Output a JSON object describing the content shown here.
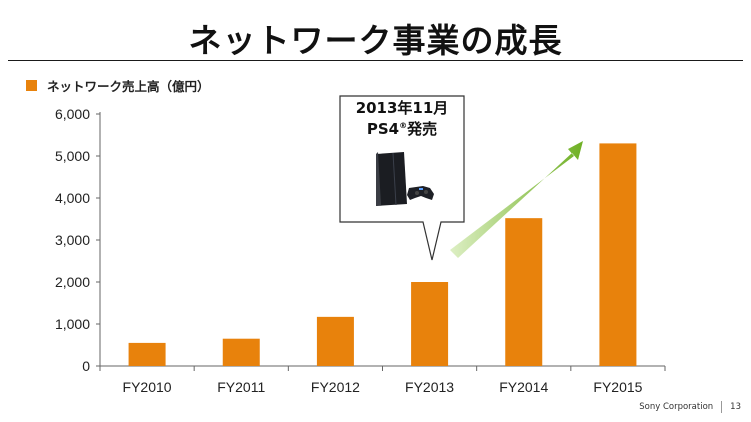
{
  "page": {
    "title": "ネットワーク事業の成長",
    "company": "Sony Corporation",
    "page_number": "13"
  },
  "callout": {
    "line1": "2013年11月",
    "line2_main": "PS4",
    "line2_sup": "®",
    "line2_tail": "発売",
    "icon": "ps4-console-icon"
  },
  "colors": {
    "bar": "#E8820C",
    "arrow_light": "#DDEFC4",
    "arrow_dark": "#6FB024",
    "axis": "#666666",
    "text": "#222222"
  },
  "chart_data": {
    "type": "bar",
    "legend_position": "top-left",
    "categories": [
      "FY2010",
      "FY2011",
      "FY2012",
      "FY2013",
      "FY2014",
      "FY2015"
    ],
    "series": [
      {
        "name": "ネットワーク売上高（億円）",
        "values": [
          550,
          650,
          1170,
          2000,
          3520,
          5300
        ]
      }
    ],
    "yticks": [
      "0",
      "1,000",
      "2,000",
      "3,000",
      "4,000",
      "5,000",
      "6,000"
    ],
    "ylim": [
      0,
      6000
    ],
    "grid": false,
    "annotation": "growth-arrow"
  }
}
